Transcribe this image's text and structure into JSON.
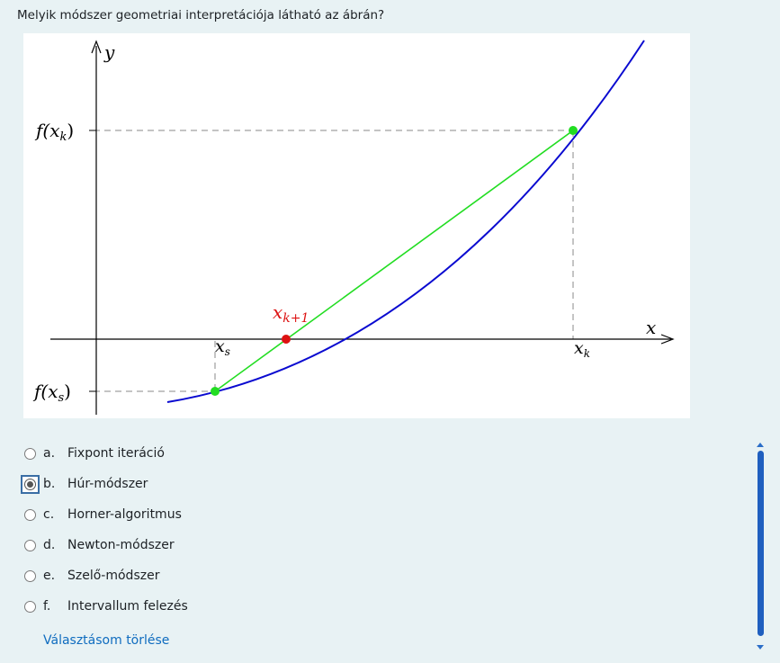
{
  "question": "Melyik módszer geometriai interpretációja látható az ábrán?",
  "figure": {
    "y_axis_label": "y",
    "x_axis_label": "x",
    "label_fxk": "f(x",
    "label_fxk_sub": "k",
    "label_fxs": "f(x",
    "label_fxs_sub": "s",
    "label_xs": "x",
    "label_xs_sub": "s",
    "label_xk": "x",
    "label_xk_sub": "k",
    "label_xk1": "x",
    "label_xk1_sub": "k+1",
    "paren_close": ")",
    "colors": {
      "curve": "#0a0ad0",
      "chord": "#22dd22",
      "endpoint": "#22dd22",
      "intersection": "#dd1111",
      "axes": "#000000",
      "guides": "#888888"
    }
  },
  "options": [
    {
      "letter": "a.",
      "text": "Fixpont iteráció",
      "selected": false
    },
    {
      "letter": "b.",
      "text": "Húr-módszer",
      "selected": true
    },
    {
      "letter": "c.",
      "text": "Horner-algoritmus",
      "selected": false
    },
    {
      "letter": "d.",
      "text": "Newton-módszer",
      "selected": false
    },
    {
      "letter": "e.",
      "text": "Szelő-módszer",
      "selected": false
    },
    {
      "letter": "f.",
      "text": "Intervallum felezés",
      "selected": false
    }
  ],
  "clear_choice_label": "Választásom törlése"
}
